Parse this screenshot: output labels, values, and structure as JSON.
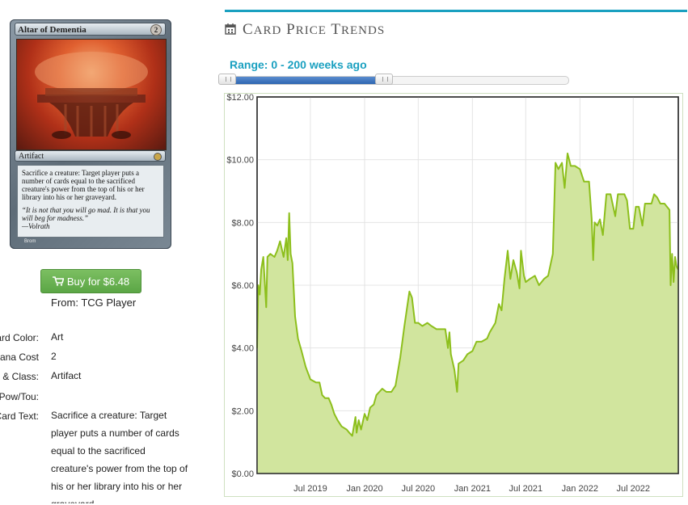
{
  "card": {
    "name": "Altar of Dementia",
    "mana_cost": "2",
    "type_line": "Artifact",
    "rules_text": "Sacrifice a creature: Target player puts a number of cards equal to the sacrificed creature's power from the top of his or her library into his or her graveyard.",
    "flavor_text": "“It is not that you will go mad. It is that you will beg for madness.”",
    "flavor_author": "—Volrath",
    "artist": "Brom"
  },
  "buy": {
    "label": "Buy for $6.48",
    "icon": "cart-icon",
    "source": "From: TCG Player",
    "color": "#5ba646"
  },
  "details": [
    {
      "label": "Card Color:",
      "value": "Art"
    },
    {
      "label": "Mana Cost",
      "value": "2"
    },
    {
      "label": "Type & Class:",
      "value": "Artifact"
    },
    {
      "label": "Pow/Tou:",
      "value": ""
    },
    {
      "label": "Card Text:",
      "value": "Sacrifice a creature: Target player puts a number of cards equal to the sacrificed creature's power from the top of his or her library into his or her graveyard."
    }
  ],
  "trends": {
    "title": "Card Price Trends",
    "icon": "calendar-icon",
    "accent": "#1aa0c0",
    "range_label": "Range: 0 - 200 weeks ago",
    "range_fraction": 0.47
  },
  "chart_data": {
    "type": "area",
    "ylim": [
      0,
      12
    ],
    "yticks": [
      "$12.00",
      "$10.00",
      "$8.00",
      "$6.00",
      "$4.00",
      "$2.00",
      "$0.00"
    ],
    "xticks": [
      "Jul 2019",
      "Jan 2020",
      "Jul 2020",
      "Jan 2021",
      "Jul 2021",
      "Jan 2022",
      "Jul 2022"
    ],
    "x_domain": [
      "2019-01-01",
      "2022-12-01"
    ],
    "series": [
      {
        "color": "#8dbf1c",
        "points": [
          [
            "2019-01-01",
            4.0
          ],
          [
            "2019-01-05",
            6.0
          ],
          [
            "2019-01-10",
            5.7
          ],
          [
            "2019-01-15",
            6.5
          ],
          [
            "2019-01-22",
            6.9
          ],
          [
            "2019-02-01",
            5.3
          ],
          [
            "2019-02-05",
            6.9
          ],
          [
            "2019-02-15",
            7.0
          ],
          [
            "2019-03-01",
            6.9
          ],
          [
            "2019-03-10",
            7.1
          ],
          [
            "2019-03-20",
            7.4
          ],
          [
            "2019-04-01",
            6.9
          ],
          [
            "2019-04-10",
            7.5
          ],
          [
            "2019-04-15",
            6.8
          ],
          [
            "2019-04-20",
            8.3
          ],
          [
            "2019-04-25",
            7.0
          ],
          [
            "2019-05-01",
            6.7
          ],
          [
            "2019-05-10",
            5.0
          ],
          [
            "2019-05-20",
            4.3
          ],
          [
            "2019-06-01",
            3.9
          ],
          [
            "2019-06-15",
            3.4
          ],
          [
            "2019-07-01",
            3.0
          ],
          [
            "2019-07-20",
            2.9
          ],
          [
            "2019-08-01",
            2.9
          ],
          [
            "2019-08-10",
            2.5
          ],
          [
            "2019-08-20",
            2.4
          ],
          [
            "2019-09-01",
            2.4
          ],
          [
            "2019-09-10",
            2.2
          ],
          [
            "2019-09-20",
            1.9
          ],
          [
            "2019-10-01",
            1.7
          ],
          [
            "2019-10-15",
            1.5
          ],
          [
            "2019-11-01",
            1.4
          ],
          [
            "2019-11-10",
            1.3
          ],
          [
            "2019-11-20",
            1.2
          ],
          [
            "2019-12-01",
            1.8
          ],
          [
            "2019-12-05",
            1.3
          ],
          [
            "2019-12-12",
            1.7
          ],
          [
            "2019-12-20",
            1.4
          ],
          [
            "2020-01-01",
            1.9
          ],
          [
            "2020-01-10",
            1.7
          ],
          [
            "2020-01-20",
            2.1
          ],
          [
            "2020-02-01",
            2.2
          ],
          [
            "2020-02-10",
            2.5
          ],
          [
            "2020-02-20",
            2.6
          ],
          [
            "2020-03-01",
            2.7
          ],
          [
            "2020-03-15",
            2.6
          ],
          [
            "2020-04-01",
            2.6
          ],
          [
            "2020-04-15",
            2.8
          ],
          [
            "2020-05-01",
            3.7
          ],
          [
            "2020-05-15",
            4.7
          ],
          [
            "2020-06-01",
            5.8
          ],
          [
            "2020-06-10",
            5.6
          ],
          [
            "2020-06-20",
            4.8
          ],
          [
            "2020-07-01",
            4.8
          ],
          [
            "2020-07-15",
            4.7
          ],
          [
            "2020-08-01",
            4.8
          ],
          [
            "2020-08-15",
            4.7
          ],
          [
            "2020-09-01",
            4.6
          ],
          [
            "2020-09-15",
            4.6
          ],
          [
            "2020-10-01",
            4.6
          ],
          [
            "2020-10-10",
            4.0
          ],
          [
            "2020-10-15",
            4.5
          ],
          [
            "2020-10-20",
            3.8
          ],
          [
            "2020-11-01",
            3.3
          ],
          [
            "2020-11-10",
            2.6
          ],
          [
            "2020-11-15",
            3.5
          ],
          [
            "2020-12-01",
            3.6
          ],
          [
            "2020-12-15",
            3.8
          ],
          [
            "2021-01-01",
            3.9
          ],
          [
            "2021-01-15",
            4.2
          ],
          [
            "2021-02-01",
            4.2
          ],
          [
            "2021-02-20",
            4.3
          ],
          [
            "2021-03-01",
            4.5
          ],
          [
            "2021-03-20",
            4.8
          ],
          [
            "2021-04-01",
            5.4
          ],
          [
            "2021-04-10",
            5.2
          ],
          [
            "2021-04-20",
            6.2
          ],
          [
            "2021-05-01",
            7.1
          ],
          [
            "2021-05-10",
            6.2
          ],
          [
            "2021-05-20",
            6.8
          ],
          [
            "2021-06-01",
            6.4
          ],
          [
            "2021-06-10",
            5.9
          ],
          [
            "2021-06-15",
            7.1
          ],
          [
            "2021-06-25",
            6.3
          ],
          [
            "2021-07-01",
            6.1
          ],
          [
            "2021-07-15",
            6.2
          ],
          [
            "2021-08-01",
            6.3
          ],
          [
            "2021-08-15",
            6.0
          ],
          [
            "2021-09-01",
            6.2
          ],
          [
            "2021-09-15",
            6.3
          ],
          [
            "2021-10-01",
            7.0
          ],
          [
            "2021-10-10",
            9.9
          ],
          [
            "2021-10-20",
            9.7
          ],
          [
            "2021-11-01",
            9.9
          ],
          [
            "2021-11-10",
            9.1
          ],
          [
            "2021-11-20",
            10.2
          ],
          [
            "2021-12-01",
            9.8
          ],
          [
            "2021-12-15",
            9.8
          ],
          [
            "2022-01-01",
            9.7
          ],
          [
            "2022-01-15",
            9.3
          ],
          [
            "2022-02-01",
            9.3
          ],
          [
            "2022-02-10",
            8.1
          ],
          [
            "2022-02-15",
            6.8
          ],
          [
            "2022-02-20",
            8.0
          ],
          [
            "2022-03-01",
            7.9
          ],
          [
            "2022-03-10",
            8.1
          ],
          [
            "2022-03-20",
            7.6
          ],
          [
            "2022-04-01",
            8.9
          ],
          [
            "2022-04-15",
            8.9
          ],
          [
            "2022-05-01",
            8.2
          ],
          [
            "2022-05-10",
            8.9
          ],
          [
            "2022-05-20",
            8.9
          ],
          [
            "2022-06-01",
            8.9
          ],
          [
            "2022-06-10",
            8.7
          ],
          [
            "2022-06-20",
            7.8
          ],
          [
            "2022-07-01",
            7.8
          ],
          [
            "2022-07-10",
            8.5
          ],
          [
            "2022-07-20",
            8.5
          ],
          [
            "2022-08-01",
            7.9
          ],
          [
            "2022-08-10",
            8.6
          ],
          [
            "2022-08-20",
            8.6
          ],
          [
            "2022-09-01",
            8.6
          ],
          [
            "2022-09-10",
            8.9
          ],
          [
            "2022-09-20",
            8.8
          ],
          [
            "2022-10-01",
            8.6
          ],
          [
            "2022-10-15",
            8.6
          ],
          [
            "2022-11-01",
            8.4
          ],
          [
            "2022-11-05",
            6.0
          ],
          [
            "2022-11-10",
            7.0
          ],
          [
            "2022-11-15",
            6.1
          ],
          [
            "2022-11-20",
            6.9
          ],
          [
            "2022-11-25",
            6.6
          ],
          [
            "2022-12-01",
            6.5
          ]
        ]
      }
    ],
    "grid": true,
    "fill_color": "#d1e59e",
    "line_color": "#8dbf1c"
  }
}
